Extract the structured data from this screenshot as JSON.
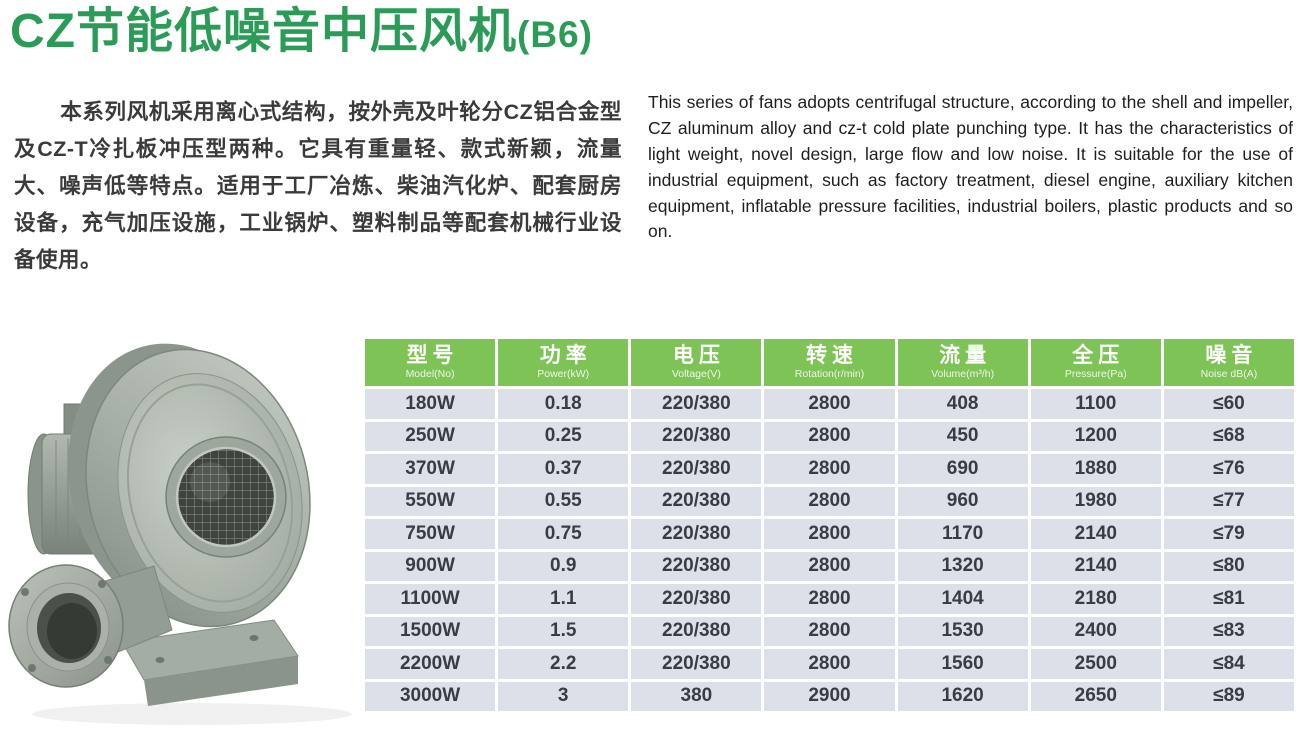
{
  "page": {
    "title_main": "CZ节能低噪音中压风机",
    "title_suffix": "(B6)",
    "intro_cn": "本系列风机采用离心式结构，按外壳及叶轮分CZ铝合金型及CZ-T冷扎板冲压型两种。它具有重量轻、款式新颖，流量大、噪声低等特点。适用于工厂冶炼、柴油汽化炉、配套厨房设备，充气加压设施，工业锅炉、塑料制品等配套机械行业设备使用。",
    "intro_en": "This series of fans adopts centrifugal structure, according to the shell and impeller, CZ aluminum alloy and cz-t cold plate punching type. It has the characteristics of light weight, novel design, large flow and low noise. It is suitable for the use of industrial equipment, such as factory treatment, diesel engine, auxiliary kitchen equipment, inflatable pressure facilities, industrial boilers, plastic products and so on."
  },
  "product_image": {
    "alt": "CZ centrifugal blower: grey aluminum housing with round mesh inlet, side motor, flanged outlet and mounting base"
  },
  "colors": {
    "title_green": "#2b9c57",
    "header_green": "#7dc355",
    "row_bg": "#dce1e9",
    "cell_text": "#383c43"
  },
  "spec_table": {
    "columns": [
      {
        "cn": "型号",
        "en": "Model(No)"
      },
      {
        "cn": "功率",
        "en": "Power(kW)"
      },
      {
        "cn": "电压",
        "en": "Voltage(V)"
      },
      {
        "cn": "转速",
        "en": "Rotation(r/min)"
      },
      {
        "cn": "流量",
        "en": "Volume(m³/h)"
      },
      {
        "cn": "全压",
        "en": "Pressure(Pa)"
      },
      {
        "cn": "噪音",
        "en": "Noise dB(A)"
      }
    ],
    "rows": [
      [
        "180W",
        "0.18",
        "220/380",
        "2800",
        "408",
        "1100",
        "≤60"
      ],
      [
        "250W",
        "0.25",
        "220/380",
        "2800",
        "450",
        "1200",
        "≤68"
      ],
      [
        "370W",
        "0.37",
        "220/380",
        "2800",
        "690",
        "1880",
        "≤76"
      ],
      [
        "550W",
        "0.55",
        "220/380",
        "2800",
        "960",
        "1980",
        "≤77"
      ],
      [
        "750W",
        "0.75",
        "220/380",
        "2800",
        "1170",
        "2140",
        "≤79"
      ],
      [
        "900W",
        "0.9",
        "220/380",
        "2800",
        "1320",
        "2140",
        "≤80"
      ],
      [
        "1100W",
        "1.1",
        "220/380",
        "2800",
        "1404",
        "2180",
        "≤81"
      ],
      [
        "1500W",
        "1.5",
        "220/380",
        "2800",
        "1530",
        "2400",
        "≤83"
      ],
      [
        "2200W",
        "2.2",
        "220/380",
        "2800",
        "1560",
        "2500",
        "≤84"
      ],
      [
        "3000W",
        "3",
        "380",
        "2900",
        "1620",
        "2650",
        "≤89"
      ]
    ]
  }
}
